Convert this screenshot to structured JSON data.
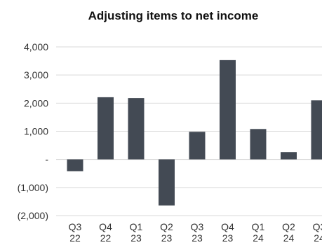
{
  "chart_data": {
    "type": "bar",
    "title": "Adjusting items to net income",
    "xlabel": "",
    "ylabel": "",
    "categories": [
      [
        "Q3",
        "22"
      ],
      [
        "Q4",
        "22"
      ],
      [
        "Q1",
        "23"
      ],
      [
        "Q2",
        "23"
      ],
      [
        "Q3",
        "23"
      ],
      [
        "Q4",
        "23"
      ],
      [
        "Q1",
        "24"
      ],
      [
        "Q2",
        "24"
      ],
      [
        "Q3",
        "24"
      ]
    ],
    "values": [
      -420,
      2210,
      2180,
      -1640,
      980,
      3530,
      1080,
      260,
      2100
    ],
    "ylim": [
      -2000,
      4000
    ],
    "yticks": [
      4000,
      3000,
      2000,
      1000,
      0,
      -1000,
      -2000
    ],
    "ytick_labels": [
      "4,000",
      "3,000",
      "2,000",
      "1,000",
      "-",
      "(1,000)",
      "(2,000)"
    ],
    "grid": true,
    "bar_color": "#434a54"
  }
}
